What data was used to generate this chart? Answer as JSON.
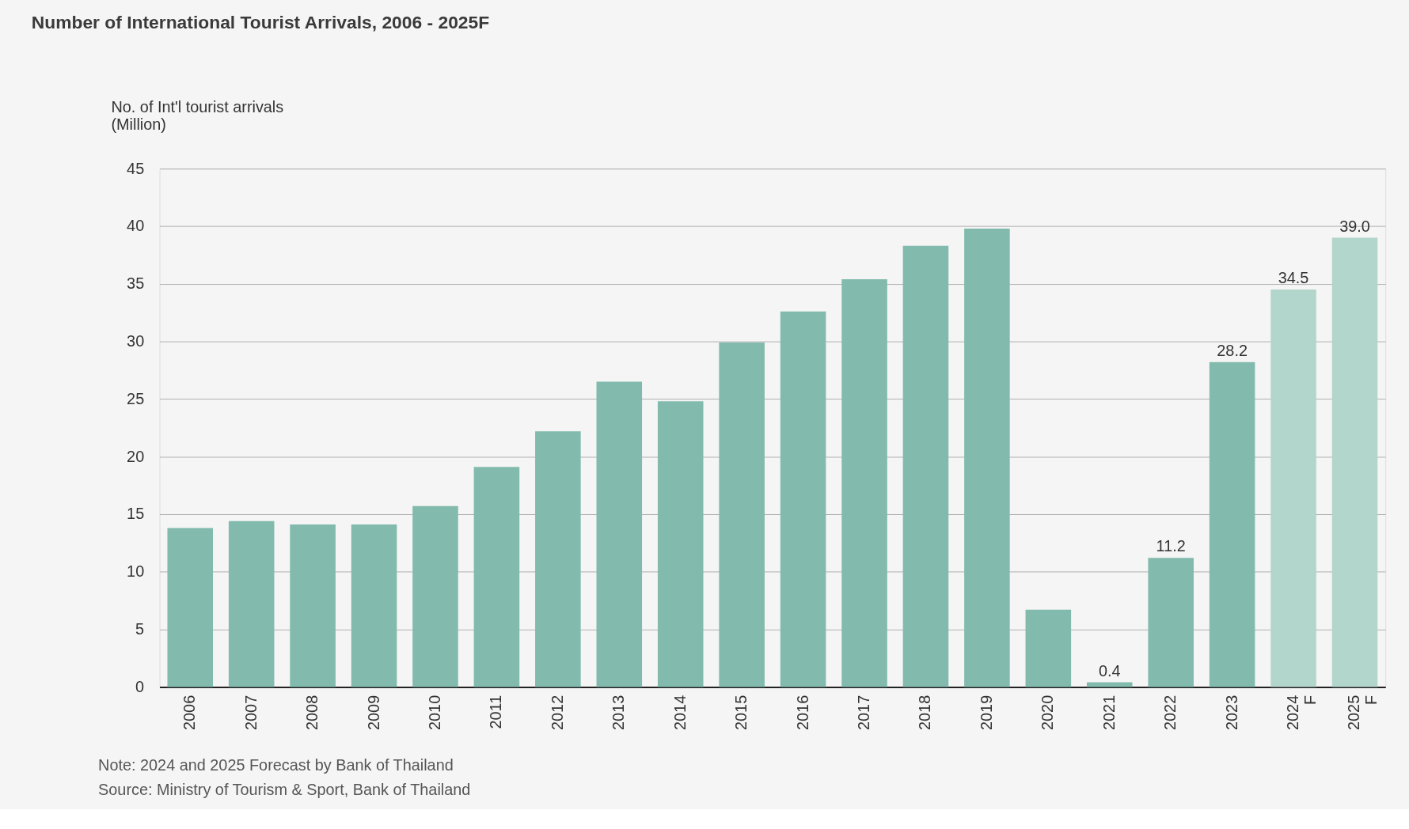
{
  "chart_data": {
    "type": "bar",
    "title": "Number of International Tourist Arrivals, 2006 - 2025F",
    "ylabel": "No. of Int'l tourist arrivals\n(Million)",
    "categories": [
      "2006",
      "2007",
      "2008",
      "2009",
      "2010",
      "2011",
      "2012",
      "2013",
      "2014",
      "2015",
      "2016",
      "2017",
      "2018",
      "2019",
      "2020",
      "2021",
      "2022",
      "2023",
      "2024 F",
      "2025 F"
    ],
    "values": [
      13.8,
      14.4,
      14.1,
      14.1,
      15.7,
      19.1,
      22.2,
      26.5,
      24.8,
      29.9,
      32.6,
      35.4,
      38.3,
      39.8,
      6.7,
      0.4,
      11.2,
      28.2,
      34.5,
      39.0
    ],
    "value_labels": [
      null,
      null,
      null,
      null,
      null,
      null,
      null,
      null,
      null,
      null,
      null,
      null,
      null,
      null,
      null,
      "0.4",
      "11.2",
      "28.2",
      "34.5",
      "39.0"
    ],
    "colors": [
      "#82bbad",
      "#82bbad",
      "#82bbad",
      "#82bbad",
      "#82bbad",
      "#82bbad",
      "#82bbad",
      "#82bbad",
      "#82bbad",
      "#82bbad",
      "#82bbad",
      "#82bbad",
      "#82bbad",
      "#82bbad",
      "#82bbad",
      "#82bbad",
      "#82bbad",
      "#82bbad",
      "#b3d6cc",
      "#b3d6cc"
    ],
    "ylim": [
      0,
      45
    ],
    "yticks": [
      0,
      5,
      10,
      15,
      20,
      25,
      30,
      35,
      40,
      45
    ],
    "grid": "y",
    "legend": false,
    "annotations": [
      "Note: 2024 and 2025 Forecast by Bank of Thailand",
      "Source: Ministry of Tourism & Sport, Bank of Thailand"
    ]
  }
}
